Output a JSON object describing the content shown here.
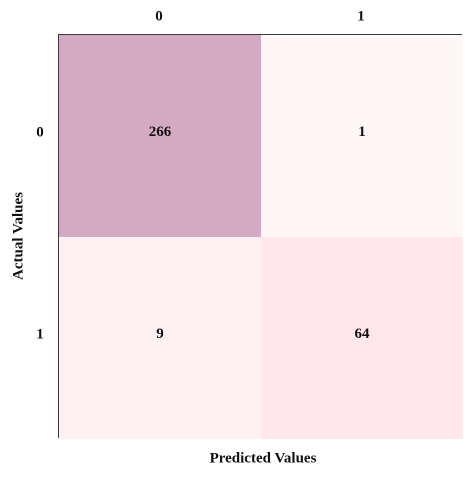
{
  "chart_data": {
    "type": "heatmap",
    "title": "",
    "xlabel": "Predicted Values",
    "ylabel": "Actual Values",
    "x_categories": [
      "0",
      "1"
    ],
    "y_categories": [
      "0",
      "1"
    ],
    "x_tick_position": "top",
    "matrix": [
      [
        266,
        1
      ],
      [
        9,
        64
      ]
    ],
    "cell_labels": [
      [
        "266",
        "1"
      ],
      [
        "9",
        "64"
      ]
    ],
    "grid": false,
    "legend": "none",
    "colors": {
      "low": "#fff6f7",
      "mid": "#ffe6ea",
      "high": "#d4aac2"
    }
  }
}
